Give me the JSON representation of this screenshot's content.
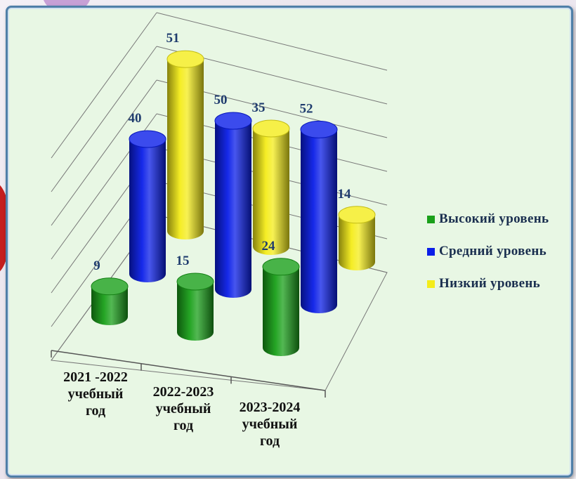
{
  "chart_data": {
    "type": "bar",
    "categories": [
      "2021 -2022\nучебный\nгод",
      "2022-2023\nучебный\nгод",
      "2023-2024\nучебный\nгод"
    ],
    "series": [
      {
        "name": "Высокий уровень",
        "color": "#1aa01a",
        "values": [
          9,
          15,
          24
        ]
      },
      {
        "name": "Средний уровень",
        "color": "#0a1ee8",
        "values": [
          40,
          50,
          52
        ]
      },
      {
        "name": "Низкий уровень",
        "color": "#f4ec1a",
        "values": [
          51,
          35,
          14
        ]
      }
    ],
    "style": "3d-cylinder",
    "grid": true,
    "legend_position": "right"
  }
}
